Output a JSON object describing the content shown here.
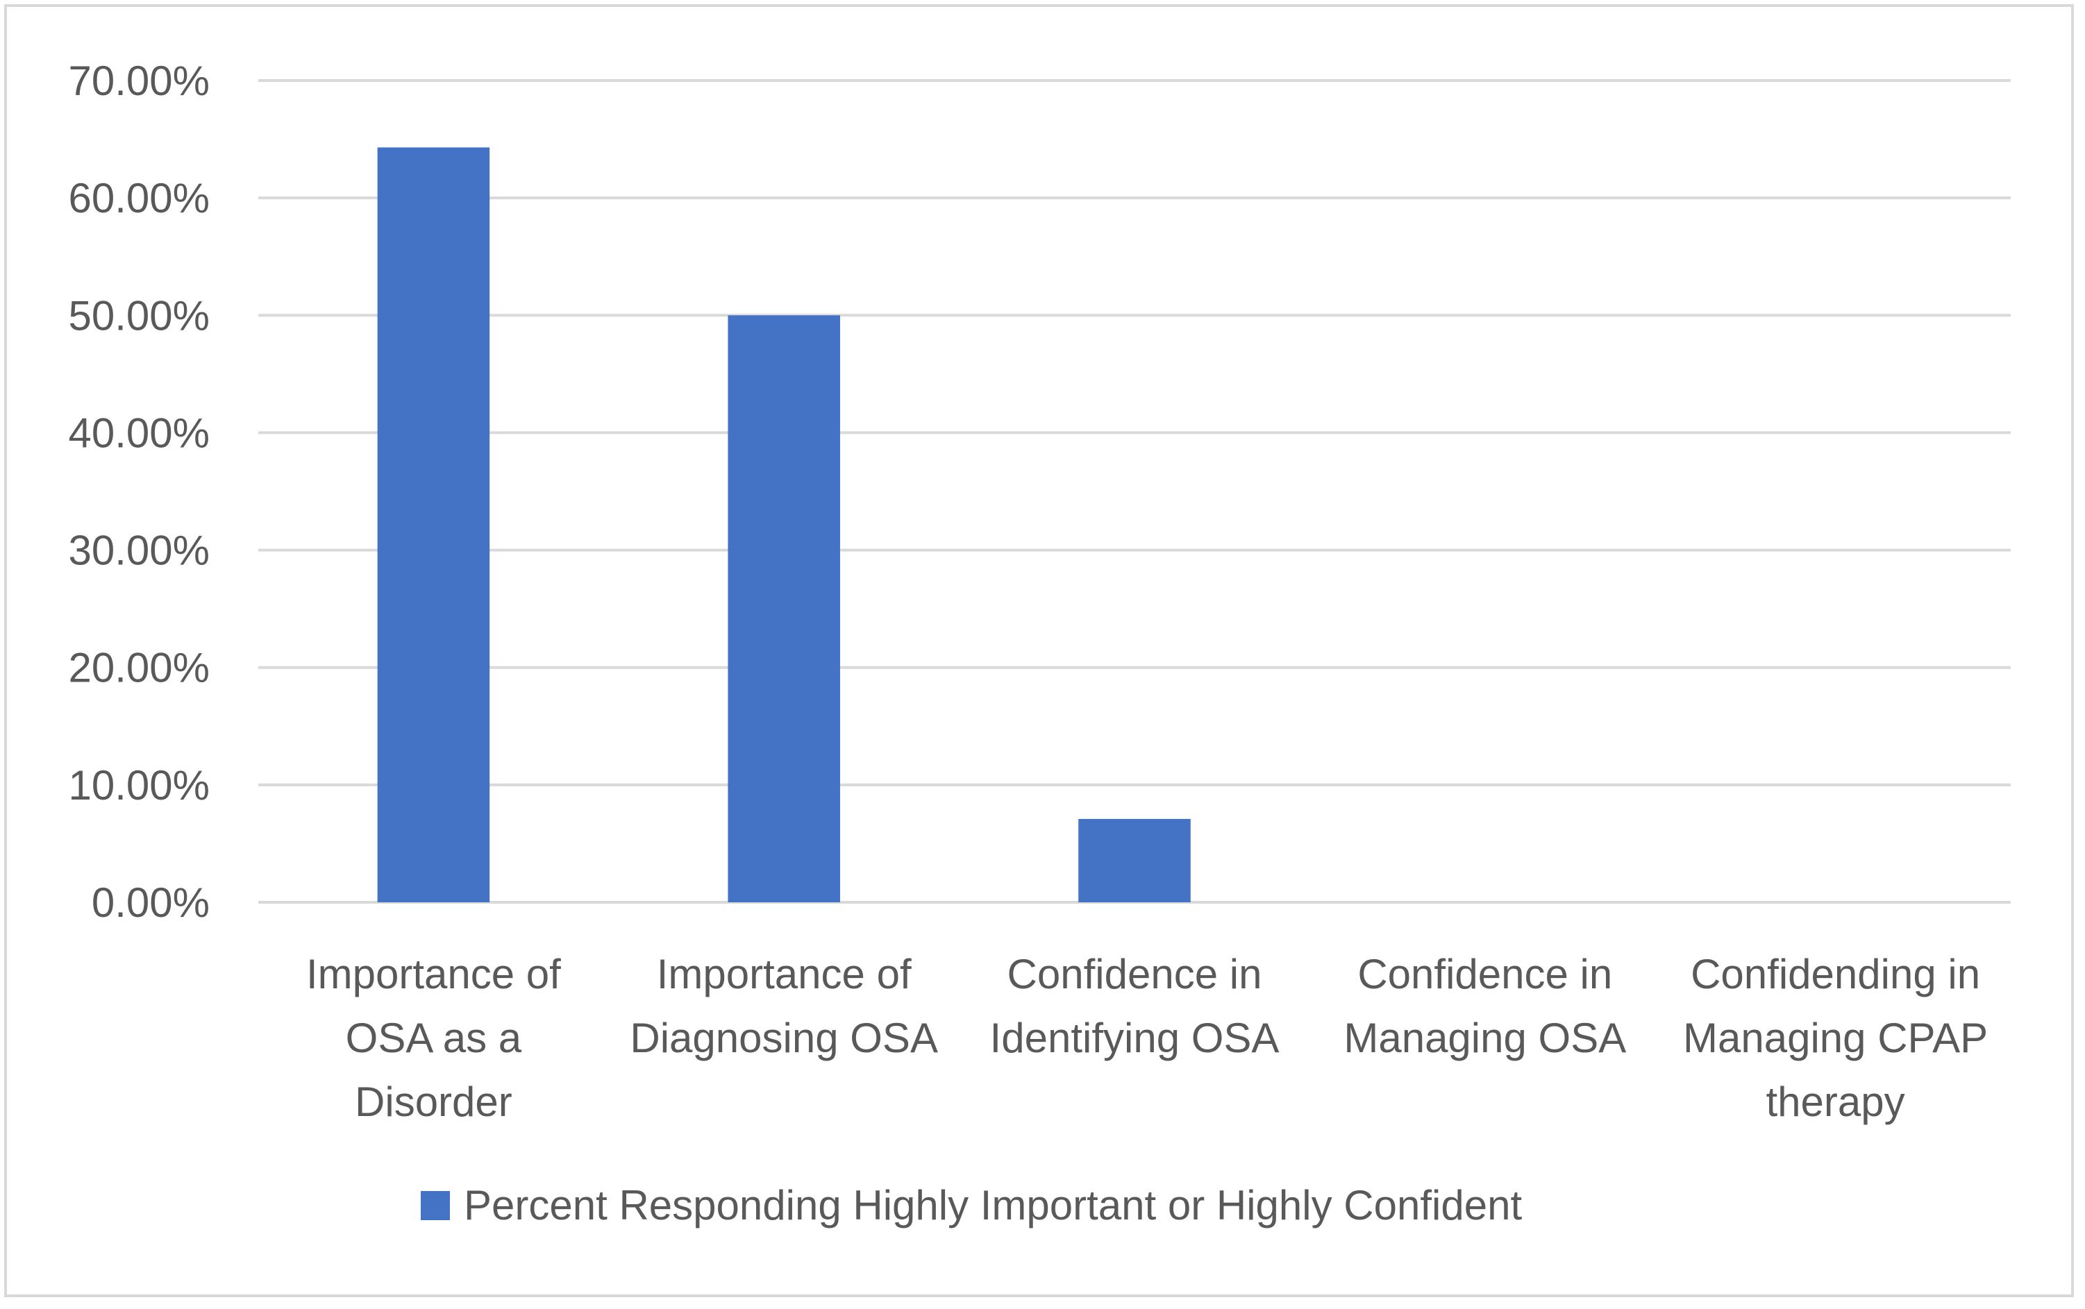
{
  "chart_data": {
    "type": "bar",
    "title": "",
    "xlabel": "",
    "ylabel": "",
    "ylim": [
      0,
      0.7
    ],
    "yticks": [
      0,
      0.1,
      0.2,
      0.3,
      0.4,
      0.5,
      0.6,
      0.7
    ],
    "ytick_labels": [
      "0.00%",
      "10.00%",
      "20.00%",
      "30.00%",
      "40.00%",
      "50.00%",
      "60.00%",
      "70.00%"
    ],
    "grid": true,
    "legend_position": "bottom",
    "categories": [
      [
        "Importance of",
        "OSA as a",
        "Disorder"
      ],
      [
        "Importance of",
        "Diagnosing OSA"
      ],
      [
        "Confidence in",
        "Identifying OSA"
      ],
      [
        "Confidence in",
        "Managing OSA"
      ],
      [
        "Confidending in",
        "Managing CPAP",
        "therapy"
      ]
    ],
    "series": [
      {
        "name": "Percent Responding Highly Important or Highly Confident",
        "color": "#4472c4",
        "values": [
          0.643,
          0.5,
          0.071,
          0,
          0
        ]
      }
    ]
  },
  "colors": {
    "grid": "#d9d9d9",
    "text": "#595959",
    "border": "#d9d9d9"
  }
}
